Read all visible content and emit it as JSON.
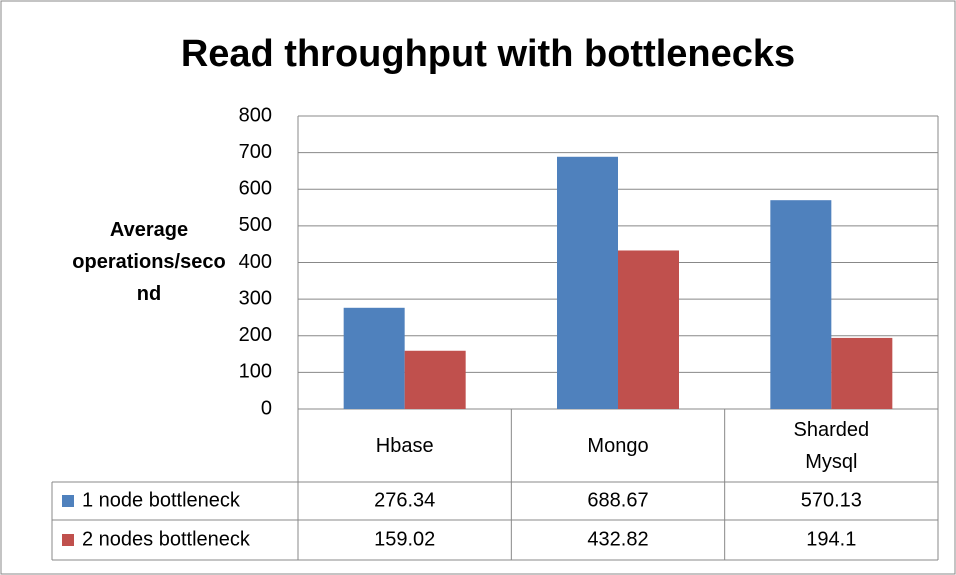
{
  "chart_data": {
    "type": "bar",
    "title": "Read throughput with bottlenecks",
    "y_label": "Average operations/second",
    "categories": [
      "Hbase",
      "Mongo",
      "Sharded Mysql"
    ],
    "series": [
      {
        "name": "1 node bottleneck",
        "color": "#4f81bd",
        "values": [
          276.34,
          688.67,
          570.13
        ]
      },
      {
        "name": "2 nodes bottleneck",
        "color": "#c0504d",
        "values": [
          159.02,
          432.82,
          194.1
        ]
      }
    ],
    "ylim": [
      0,
      800
    ],
    "yticks": [
      0,
      100,
      200,
      300,
      400,
      500,
      600,
      700,
      800
    ],
    "grid": true,
    "data_table": true
  }
}
